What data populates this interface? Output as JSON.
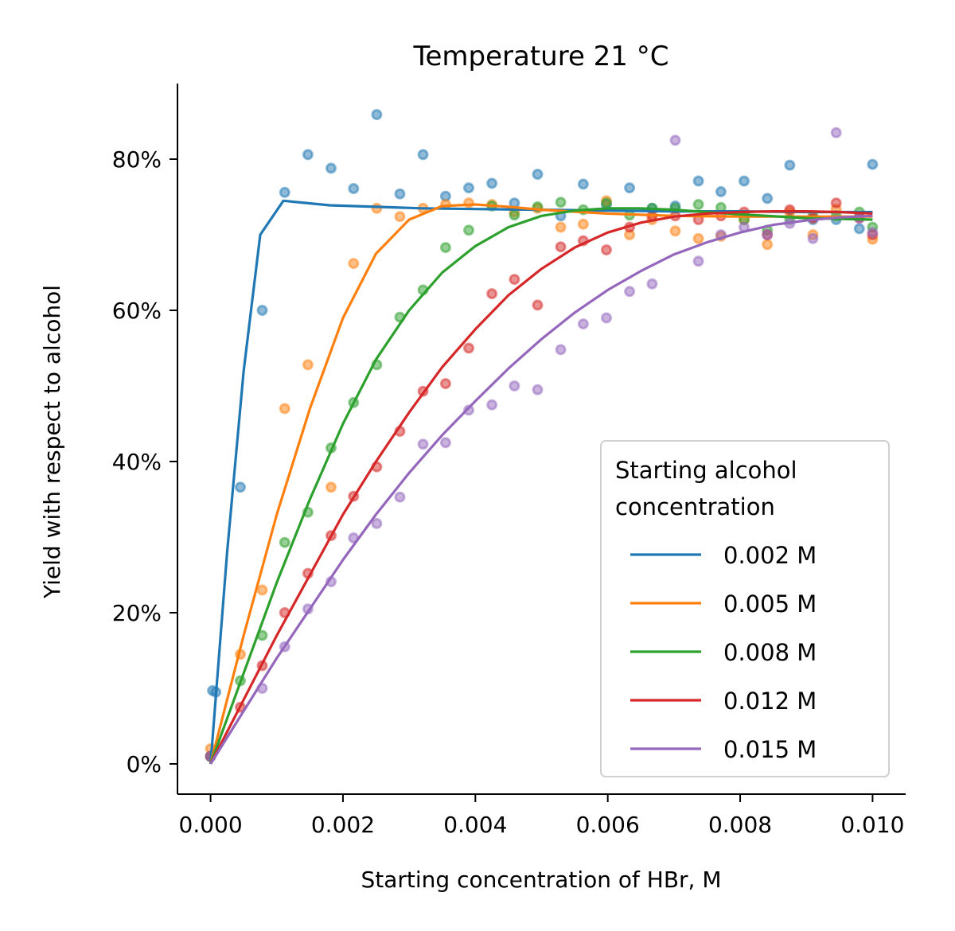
{
  "chart_data": {
    "type": "line",
    "title": "Temperature 21 °C",
    "xlabel": "Starting concentration of HBr, M",
    "ylabel": "Yield with respect to alcohol",
    "xlim": [
      -0.0005,
      0.0105
    ],
    "ylim": [
      -0.04,
      0.9
    ],
    "xticks": [
      0.0,
      0.002,
      0.004,
      0.006,
      0.008,
      0.01
    ],
    "xtick_labels": [
      "0.000",
      "0.002",
      "0.004",
      "0.006",
      "0.008",
      "0.010"
    ],
    "yticks": [
      0,
      0.2,
      0.4,
      0.6,
      0.8
    ],
    "ytick_labels": [
      "0%",
      "20%",
      "40%",
      "60%",
      "80%"
    ],
    "grid": false,
    "legend": {
      "title_lines": [
        "Starting alcohol",
        "concentration"
      ],
      "placement": "lower-right"
    },
    "series": [
      {
        "name": "0.002 M",
        "color": "#1f77b4",
        "fit": {
          "x": [
            0,
            0.00025,
            0.0005,
            0.00075,
            0.0011,
            0.0018,
            0.0025,
            0.0032,
            0.004,
            0.005,
            0.006,
            0.007,
            0.008,
            0.009,
            0.01
          ],
          "y": [
            0.0,
            0.28,
            0.52,
            0.7,
            0.745,
            0.739,
            0.737,
            0.735,
            0.734,
            0.733,
            0.732,
            0.731,
            0.731,
            0.73,
            0.73
          ]
        },
        "points": {
          "x": [
            0.0,
            3e-05,
            8e-05,
            0.00045,
            0.00078,
            0.00112,
            0.00147,
            0.00182,
            0.00216,
            0.00251,
            0.00286,
            0.00321,
            0.00355,
            0.0039,
            0.00425,
            0.00459,
            0.00494,
            0.00529,
            0.00563,
            0.00598,
            0.00633,
            0.00667,
            0.00702,
            0.00737,
            0.00771,
            0.00806,
            0.00841,
            0.00875,
            0.0091,
            0.00945,
            0.0098,
            0.01
          ],
          "y": [
            0.01,
            0.097,
            0.095,
            0.366,
            0.6,
            0.756,
            0.806,
            0.788,
            0.761,
            0.859,
            0.754,
            0.806,
            0.751,
            0.762,
            0.768,
            0.742,
            0.78,
            0.725,
            0.767,
            0.74,
            0.762,
            0.735,
            0.738,
            0.771,
            0.757,
            0.771,
            0.748,
            0.792,
            0.72,
            0.72,
            0.708,
            0.793
          ]
        }
      },
      {
        "name": "0.005 M",
        "color": "#ff7f0e",
        "fit": {
          "x": [
            0,
            0.0005,
            0.001,
            0.0015,
            0.002,
            0.0025,
            0.003,
            0.0035,
            0.004,
            0.0045,
            0.005,
            0.006,
            0.007,
            0.008,
            0.009,
            0.01
          ],
          "y": [
            0.0,
            0.17,
            0.33,
            0.47,
            0.59,
            0.675,
            0.72,
            0.738,
            0.74,
            0.737,
            0.733,
            0.728,
            0.725,
            0.724,
            0.724,
            0.724
          ]
        },
        "points": {
          "x": [
            0.0,
            0.00045,
            0.00078,
            0.00112,
            0.00147,
            0.00182,
            0.00216,
            0.00251,
            0.00286,
            0.00321,
            0.00355,
            0.0039,
            0.00425,
            0.00459,
            0.00494,
            0.00529,
            0.00563,
            0.00598,
            0.00633,
            0.00667,
            0.00702,
            0.00737,
            0.00771,
            0.00806,
            0.00841,
            0.00875,
            0.0091,
            0.00945,
            0.0098,
            0.01
          ],
          "y": [
            0.02,
            0.145,
            0.23,
            0.47,
            0.528,
            0.366,
            0.662,
            0.735,
            0.724,
            0.735,
            0.74,
            0.742,
            0.74,
            0.73,
            0.735,
            0.71,
            0.714,
            0.745,
            0.7,
            0.72,
            0.705,
            0.695,
            0.698,
            0.72,
            0.687,
            0.73,
            0.7,
            0.734,
            0.724,
            0.694
          ]
        }
      },
      {
        "name": "0.008 M",
        "color": "#2ca02c",
        "fit": {
          "x": [
            0,
            0.0005,
            0.001,
            0.0015,
            0.002,
            0.0025,
            0.003,
            0.0035,
            0.004,
            0.0045,
            0.005,
            0.0055,
            0.006,
            0.0065,
            0.007,
            0.008,
            0.009,
            0.01
          ],
          "y": [
            0.0,
            0.12,
            0.24,
            0.35,
            0.45,
            0.535,
            0.6,
            0.65,
            0.685,
            0.71,
            0.725,
            0.732,
            0.735,
            0.735,
            0.733,
            0.727,
            0.722,
            0.72
          ]
        },
        "points": {
          "x": [
            0.0,
            0.00045,
            0.00078,
            0.00112,
            0.00147,
            0.00182,
            0.00216,
            0.00251,
            0.00286,
            0.00321,
            0.00355,
            0.0039,
            0.00425,
            0.00459,
            0.00494,
            0.00529,
            0.00563,
            0.00598,
            0.00633,
            0.00667,
            0.00702,
            0.00737,
            0.00771,
            0.00806,
            0.00841,
            0.00875,
            0.0091,
            0.00945,
            0.0098,
            0.01
          ],
          "y": [
            0.01,
            0.11,
            0.17,
            0.293,
            0.333,
            0.418,
            0.478,
            0.528,
            0.591,
            0.627,
            0.683,
            0.706,
            0.738,
            0.726,
            0.737,
            0.743,
            0.733,
            0.742,
            0.726,
            0.735,
            0.735,
            0.74,
            0.736,
            0.72,
            0.706,
            0.72,
            0.725,
            0.725,
            0.73,
            0.71
          ]
        }
      },
      {
        "name": "0.012 M",
        "color": "#d62728",
        "fit": {
          "x": [
            0,
            0.0005,
            0.001,
            0.0015,
            0.002,
            0.0025,
            0.003,
            0.0035,
            0.004,
            0.0045,
            0.005,
            0.0055,
            0.006,
            0.0065,
            0.007,
            0.0075,
            0.008,
            0.0085,
            0.009,
            0.0095,
            0.01
          ],
          "y": [
            0.0,
            0.085,
            0.17,
            0.25,
            0.33,
            0.4,
            0.465,
            0.525,
            0.575,
            0.62,
            0.655,
            0.683,
            0.703,
            0.716,
            0.724,
            0.728,
            0.73,
            0.731,
            0.731,
            0.73,
            0.728
          ]
        },
        "points": {
          "x": [
            0.0,
            0.00045,
            0.00078,
            0.00112,
            0.00147,
            0.00182,
            0.00216,
            0.00251,
            0.00286,
            0.00321,
            0.00355,
            0.0039,
            0.00425,
            0.00459,
            0.00494,
            0.00529,
            0.00563,
            0.00598,
            0.00633,
            0.00667,
            0.00702,
            0.00737,
            0.00771,
            0.00806,
            0.00841,
            0.00875,
            0.0091,
            0.00945,
            0.0098,
            0.01
          ],
          "y": [
            0.01,
            0.075,
            0.13,
            0.2,
            0.252,
            0.302,
            0.354,
            0.393,
            0.44,
            0.493,
            0.503,
            0.55,
            0.622,
            0.641,
            0.607,
            0.684,
            0.692,
            0.68,
            0.71,
            0.725,
            0.725,
            0.72,
            0.725,
            0.73,
            0.7,
            0.733,
            0.722,
            0.742,
            0.722,
            0.7
          ]
        }
      },
      {
        "name": "0.015 M",
        "color": "#9467bd",
        "fit": {
          "x": [
            0,
            0.0005,
            0.001,
            0.0015,
            0.002,
            0.0025,
            0.003,
            0.0035,
            0.004,
            0.0045,
            0.005,
            0.0055,
            0.006,
            0.0065,
            0.007,
            0.0075,
            0.008,
            0.0085,
            0.009,
            0.0095,
            0.01
          ],
          "y": [
            0.0,
            0.07,
            0.14,
            0.205,
            0.27,
            0.33,
            0.385,
            0.435,
            0.48,
            0.523,
            0.562,
            0.597,
            0.627,
            0.652,
            0.674,
            0.69,
            0.703,
            0.713,
            0.719,
            0.723,
            0.725
          ]
        },
        "points": {
          "x": [
            0.0,
            0.00078,
            0.00112,
            0.00147,
            0.00182,
            0.00216,
            0.00251,
            0.00286,
            0.00321,
            0.00355,
            0.0039,
            0.00425,
            0.00459,
            0.00494,
            0.00529,
            0.00563,
            0.00598,
            0.00633,
            0.00667,
            0.00702,
            0.00737,
            0.00771,
            0.00806,
            0.00841,
            0.00875,
            0.0091,
            0.00945,
            0.0098,
            0.01
          ],
          "y": [
            0.01,
            0.1,
            0.155,
            0.205,
            0.241,
            0.299,
            0.318,
            0.353,
            0.423,
            0.425,
            0.468,
            0.475,
            0.5,
            0.495,
            0.548,
            0.582,
            0.59,
            0.625,
            0.635,
            0.825,
            0.665,
            0.7,
            0.71,
            0.7,
            0.715,
            0.695,
            0.835,
            0.722,
            0.703
          ]
        }
      }
    ]
  }
}
